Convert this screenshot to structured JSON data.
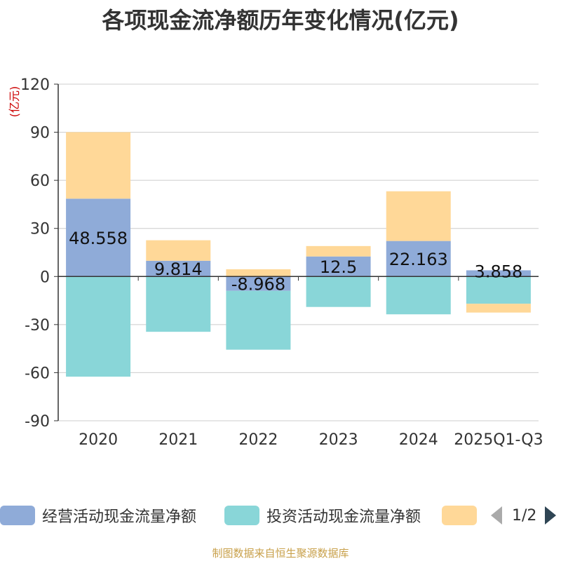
{
  "chart_data": {
    "type": "bar",
    "stacked": true,
    "title": "各项现金流净额历年变化情况(亿元)",
    "ylabel": "(亿元)",
    "xlabel": "",
    "ylim": [
      -90,
      120
    ],
    "yticks": [
      120,
      90,
      60,
      30,
      0,
      -30,
      -60,
      -90
    ],
    "grid": true,
    "categories": [
      "2020",
      "2021",
      "2022",
      "2023",
      "2024",
      "2025Q1-Q3"
    ],
    "series": [
      {
        "name": "经营活动现金流量净额",
        "color": "#8fabd8",
        "values": [
          48.558,
          9.814,
          -8.968,
          12.5,
          22.163,
          3.858
        ],
        "labels": [
          "48.558",
          "9.814",
          "-8.968",
          "12.5",
          "22.163",
          "3.858"
        ]
      },
      {
        "name": "投资活动现金流量净额",
        "color": "#89d6d8",
        "values": [
          -62.5,
          -34.5,
          -36.7,
          -19.0,
          -23.6,
          -17.0
        ]
      },
      {
        "name": "",
        "color": "#ffd898",
        "values": [
          41.5,
          12.8,
          4.5,
          6.5,
          31.0,
          -5.5
        ]
      }
    ],
    "legend_position": "bottom",
    "legend_page": "1/2"
  },
  "source_text": "制图数据来自恒生聚源数据库"
}
